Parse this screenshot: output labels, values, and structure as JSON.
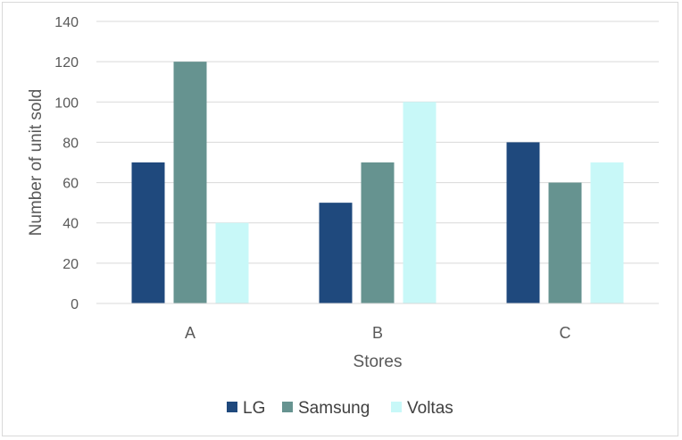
{
  "chart_data": {
    "type": "bar",
    "title": "",
    "xlabel": "Stores",
    "ylabel": "Number of unit sold",
    "categories": [
      "A",
      "B",
      "C"
    ],
    "series": [
      {
        "name": "LG",
        "values": [
          70,
          50,
          80
        ],
        "color": "#1f497d"
      },
      {
        "name": "Samsung",
        "values": [
          120,
          70,
          60
        ],
        "color": "#669390"
      },
      {
        "name": "Voltas",
        "values": [
          40,
          100,
          70
        ],
        "color": "#c8f8f8"
      }
    ],
    "ylim": [
      0,
      140
    ],
    "yticks": [
      "0",
      "20",
      "40",
      "60",
      "80",
      "100",
      "120",
      "140"
    ],
    "grid": true,
    "legend_position": "bottom"
  }
}
